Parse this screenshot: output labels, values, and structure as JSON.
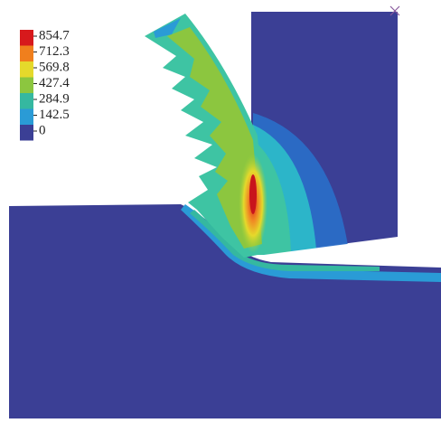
{
  "legend": {
    "labels": [
      854.7,
      712.3,
      569.8,
      427.4,
      284.9,
      142.5,
      0
    ],
    "colors": [
      "#d7191c",
      "#f07f1d",
      "#e5d92b",
      "#8cc63f",
      "#35b8a0",
      "#2a9bd6",
      "#3b3f95"
    ]
  }
}
